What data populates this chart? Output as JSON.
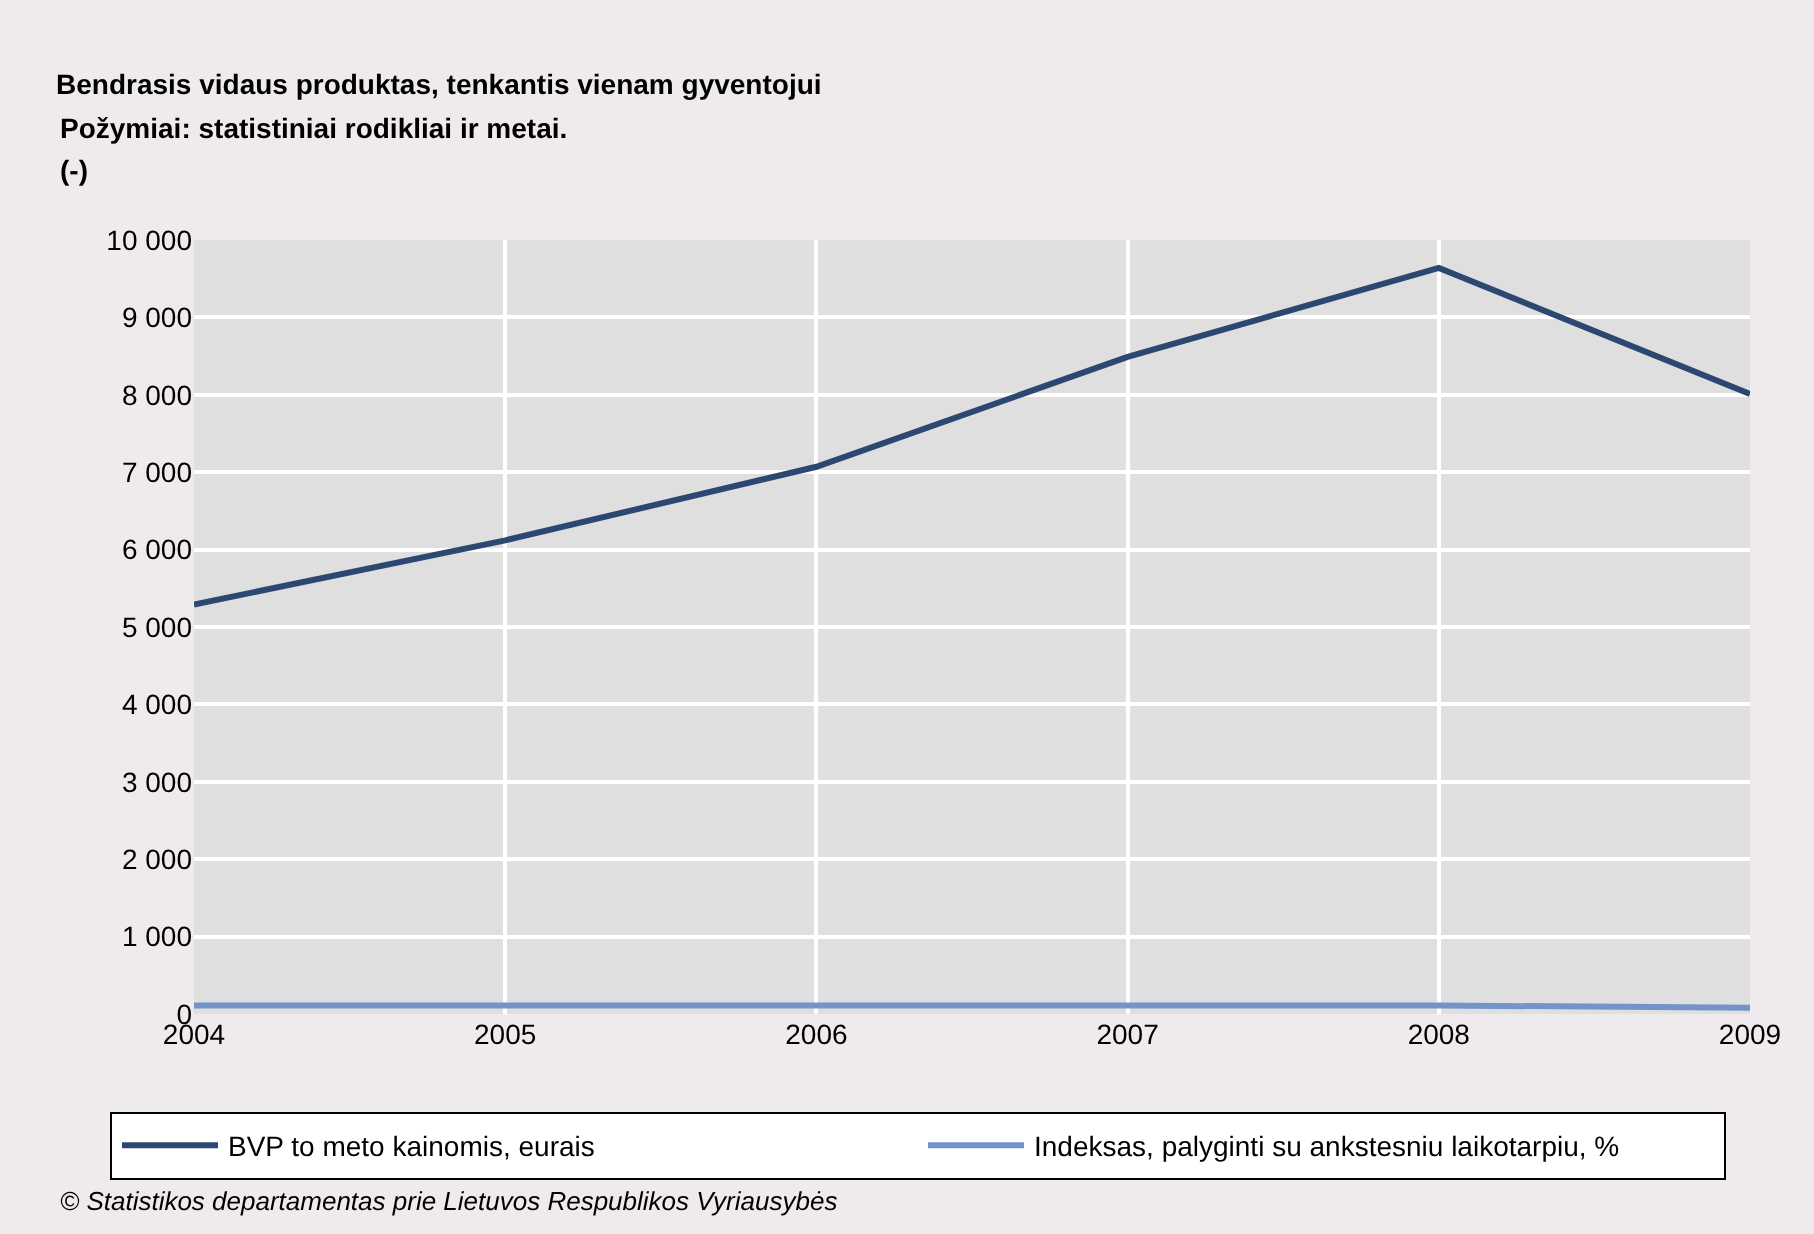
{
  "chart_data": {
    "type": "line",
    "title": "Bendrasis vidaus produktas, tenkantis vienam gyventojui",
    "subtitle": "Požymiai: statistiniai rodikliai ir metai.",
    "ylabel": "(-)",
    "x": [
      2004,
      2005,
      2006,
      2007,
      2008,
      2009
    ],
    "series": [
      {
        "name": "BVP to meto kainomis, eurais",
        "color": "#2c4870",
        "values": [
          5290,
          6120,
          7070,
          8490,
          9640,
          8010
        ]
      },
      {
        "name": "Indeksas, palyginti su ankstesniu laikotarpiu, %",
        "color": "#7394c9",
        "values": [
          110,
          110,
          110,
          110,
          110,
          80
        ]
      }
    ],
    "xlim": [
      2004,
      2009
    ],
    "xticks": [
      2004,
      2005,
      2006,
      2007,
      2008,
      2009
    ],
    "ylim": [
      0,
      10000
    ],
    "yticks": [
      0,
      {
        "value": 1000,
        "label": "1 000"
      },
      {
        "value": 2000,
        "label": "2 000"
      },
      {
        "value": 3000,
        "label": "3 000"
      },
      {
        "value": 4000,
        "label": "4 000"
      },
      {
        "value": 5000,
        "label": "5 000"
      },
      {
        "value": 6000,
        "label": "6 000"
      },
      {
        "value": 7000,
        "label": "7 000"
      },
      {
        "value": 8000,
        "label": "8 000"
      },
      {
        "value": 9000,
        "label": "9 000"
      },
      {
        "value": 10000,
        "label": "10 000"
      }
    ],
    "grid": true,
    "legend": "bottom",
    "marker": "none",
    "line_style": "solid",
    "annotations": [
      "© Statistikos departamentas prie Lietuvos Respublikos Vyriausybės"
    ]
  }
}
